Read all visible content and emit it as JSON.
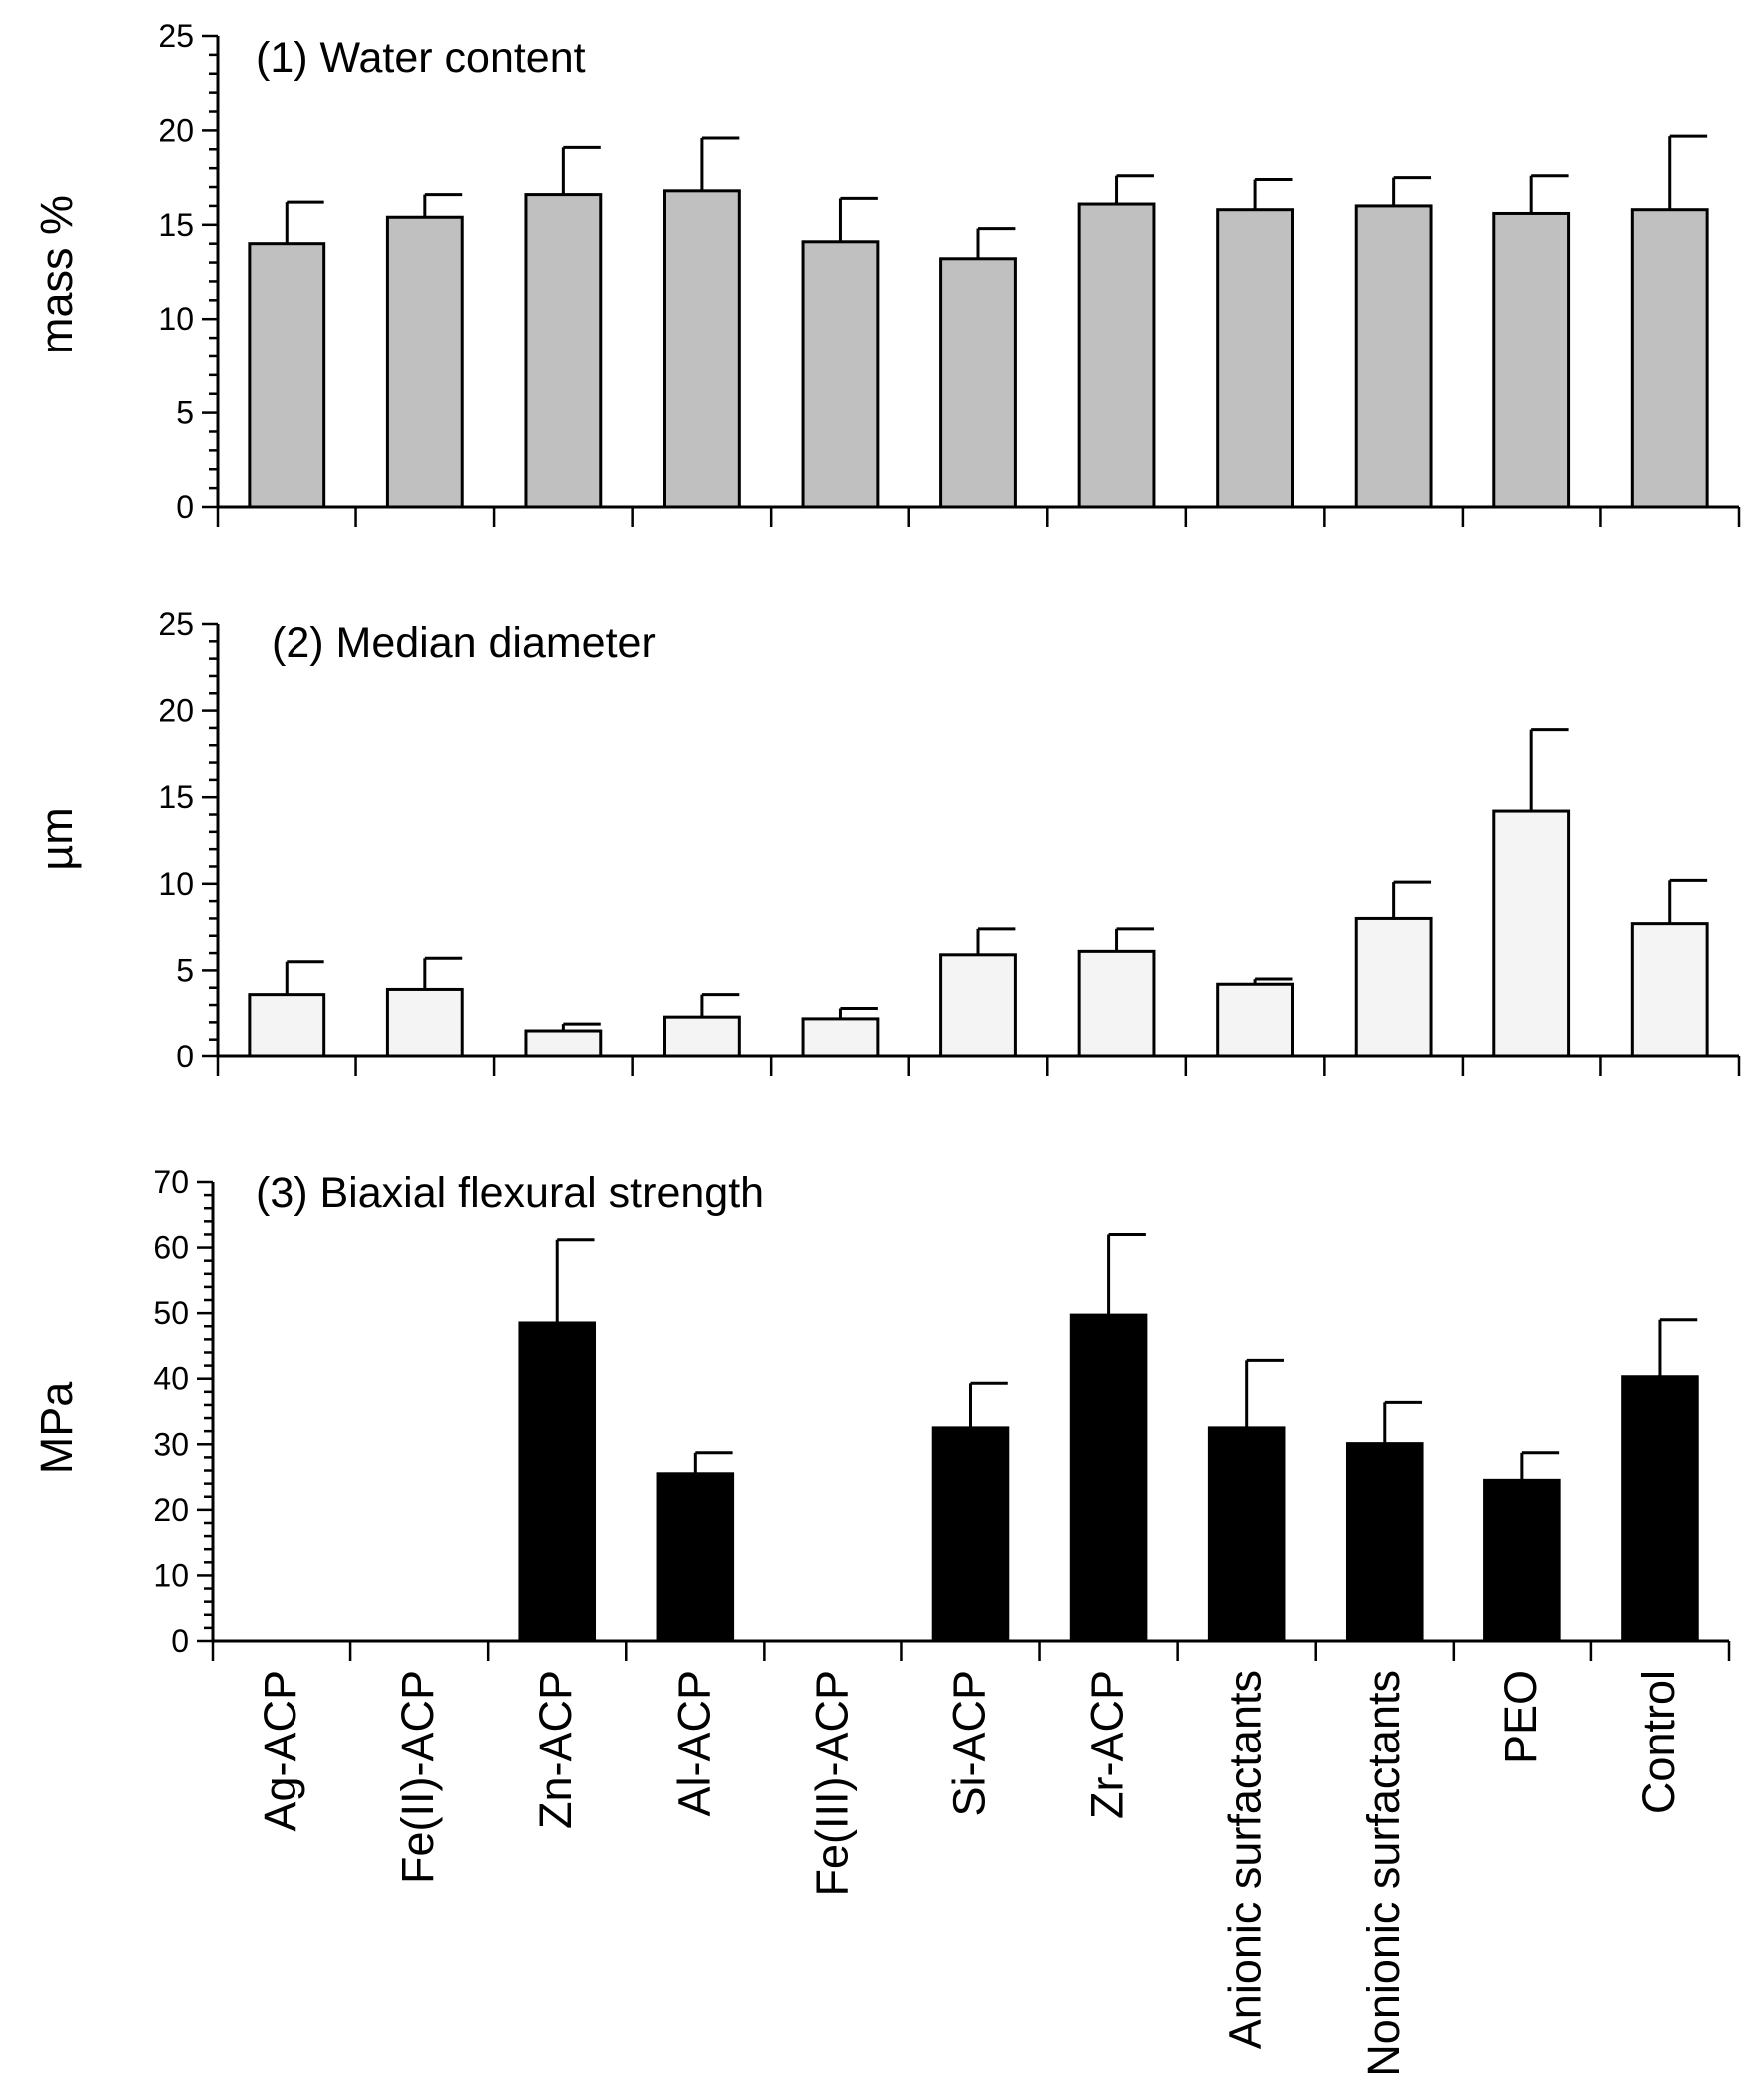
{
  "chart_data": [
    {
      "type": "bar",
      "title": "(1) Water content",
      "ylabel": "mass %",
      "xlabel": "",
      "ylim": [
        0,
        25
      ],
      "yticks": [
        0,
        5,
        10,
        15,
        20,
        25
      ],
      "bar_color": "#c0c0c0",
      "categories": [
        "Ag-ACP",
        "Fe(II)-ACP",
        "Zn-ACP",
        "Al-ACP",
        "Fe(III)-ACP",
        "Si-ACP",
        "Zr-ACP",
        "Anionic surfactants",
        "Nonionic surfactants",
        "PEO",
        "Control"
      ],
      "values": [
        14.0,
        15.4,
        16.6,
        16.8,
        14.1,
        13.2,
        16.1,
        15.8,
        16.0,
        15.6,
        15.8
      ],
      "error_upper": [
        16.2,
        16.6,
        19.1,
        19.6,
        16.4,
        14.8,
        17.6,
        17.4,
        17.5,
        17.6,
        19.7
      ]
    },
    {
      "type": "bar",
      "title": "(2) Median diameter",
      "ylabel": "µm",
      "xlabel": "",
      "ylim": [
        0,
        25
      ],
      "yticks": [
        0,
        5,
        10,
        15,
        20,
        25
      ],
      "bar_color": "#f4f4f4",
      "categories": [
        "Ag-ACP",
        "Fe(II)-ACP",
        "Zn-ACP",
        "Al-ACP",
        "Fe(III)-ACP",
        "Si-ACP",
        "Zr-ACP",
        "Anionic surfactants",
        "Nonionic surfactants",
        "PEO",
        "Control"
      ],
      "values": [
        3.6,
        3.9,
        1.5,
        2.3,
        2.2,
        5.9,
        6.1,
        4.2,
        8.0,
        14.2,
        7.7
      ],
      "error_upper": [
        5.5,
        5.7,
        1.9,
        3.6,
        2.8,
        7.4,
        7.4,
        4.5,
        10.1,
        18.9,
        10.2
      ]
    },
    {
      "type": "bar",
      "title": "(3) Biaxial flexural strength",
      "ylabel": "MPa",
      "xlabel": "",
      "ylim": [
        0,
        70
      ],
      "yticks": [
        0,
        10,
        20,
        30,
        40,
        50,
        60,
        70
      ],
      "bar_color": "#000000",
      "categories": [
        "Ag-ACP",
        "Fe(II)-ACP",
        "Zn-ACP",
        "Al-ACP",
        "Fe(III)-ACP",
        "Si-ACP",
        "Zr-ACP",
        "Anionic surfactants",
        "Nonionic surfactants",
        "PEO",
        "Control"
      ],
      "values": [
        null,
        null,
        48.5,
        25.5,
        null,
        32.5,
        49.7,
        32.5,
        30.1,
        24.5,
        40.3
      ],
      "error_upper": [
        null,
        null,
        61.2,
        28.7,
        null,
        39.3,
        62.0,
        42.8,
        36.4,
        28.7,
        49.0
      ]
    }
  ],
  "x_axis": {
    "categories": [
      "Ag-ACP",
      "Fe(II)-ACP",
      "Zn-ACP",
      "Al-ACP",
      "Fe(III)-ACP",
      "Si-ACP",
      "Zr-ACP",
      "Anionic surfactants",
      "Nonionic surfactants",
      "PEO",
      "Control"
    ]
  }
}
